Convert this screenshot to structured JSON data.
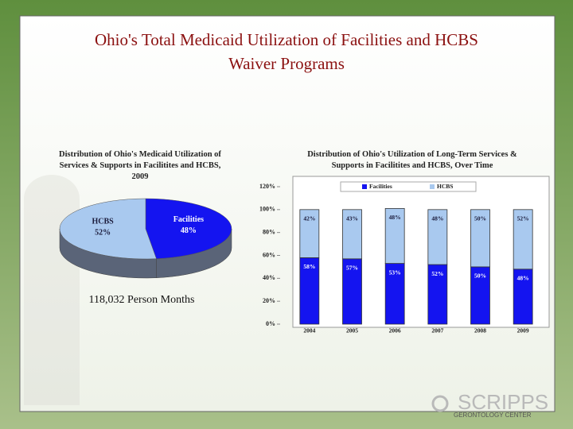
{
  "title": "Ohio's Total Medicaid Utilization of Facilities and HCBS Waiver Programs",
  "note": "118,032 Person Months",
  "logo": {
    "name": "SCRIPPS",
    "subtitle": "GERONTOLOGY CENTER"
  },
  "chart_data": [
    {
      "type": "pie",
      "title": "Distribution of Ohio's Medicaid Utilization of Services & Supports in Facilitites and HCBS, 2009",
      "categories": [
        "Facilities",
        "HCBS"
      ],
      "values": [
        48,
        52
      ],
      "value_labels": [
        "48%",
        "52%"
      ],
      "colors": [
        "#1414f0",
        "#a9c9ef"
      ]
    },
    {
      "type": "bar",
      "stacked": true,
      "title": "Distribution of Ohio's Utilization of Long-Term Services & Supports in Facilitites and HCBS, Over Time",
      "categories": [
        "2004",
        "2005",
        "2006",
        "2007",
        "2008",
        "2009"
      ],
      "series": [
        {
          "name": "Facilities",
          "color": "#1414f0",
          "values": [
            58,
            57,
            53,
            52,
            50,
            48
          ],
          "value_labels": [
            "58%",
            "57%",
            "53%",
            "52%",
            "50%",
            "48%"
          ]
        },
        {
          "name": "HCBS",
          "color": "#a9c9ef",
          "values": [
            42,
            43,
            48,
            48,
            50,
            52
          ],
          "value_labels": [
            "42%",
            "43%",
            "48%",
            "48%",
            "50%",
            "52%"
          ]
        }
      ],
      "ylim": [
        0,
        120
      ],
      "yticks": [
        {
          "value": 0,
          "label": "0%"
        },
        {
          "value": 20,
          "label": "20%"
        },
        {
          "value": 40,
          "label": "40%"
        },
        {
          "value": 60,
          "label": "60%"
        },
        {
          "value": 80,
          "label": "80%"
        },
        {
          "value": 100,
          "label": "100%"
        },
        {
          "value": 120,
          "label": "120%"
        }
      ],
      "legend": "top"
    }
  ]
}
